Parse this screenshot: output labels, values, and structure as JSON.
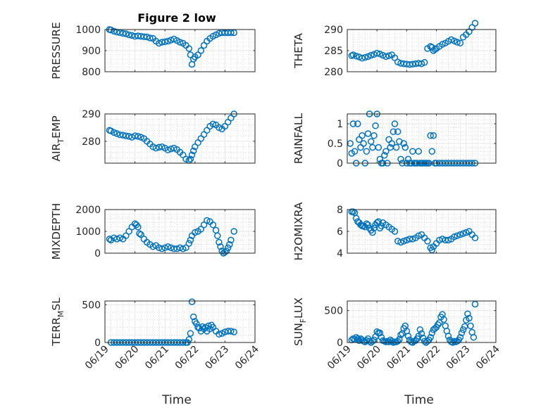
{
  "figure": {
    "title": "Figure 2 low",
    "xlabel": "Time"
  },
  "colors": {
    "marker": "#0072BD"
  },
  "chart_data": [
    {
      "type": "scatter",
      "ylabel": "PRESSURE",
      "ylim": [
        800,
        1000
      ],
      "yticks": [
        800,
        900,
        1000
      ],
      "x": [
        19.15,
        19.2,
        19.3,
        19.4,
        19.5,
        19.6,
        19.7,
        19.8,
        19.9,
        20.0,
        20.1,
        20.2,
        20.3,
        20.4,
        20.5,
        20.6,
        20.7,
        20.8,
        20.9,
        21.0,
        21.1,
        21.2,
        21.3,
        21.4,
        21.5,
        21.6,
        21.7,
        21.8,
        21.85,
        21.9,
        21.95,
        22.0,
        22.1,
        22.2,
        22.3,
        22.4,
        22.5,
        22.6,
        22.7,
        22.8,
        22.9,
        23.0,
        23.1,
        23.2,
        23.3
      ],
      "y": [
        1000,
        998,
        992,
        988,
        985,
        982,
        980,
        975,
        972,
        968,
        970,
        968,
        966,
        965,
        960,
        958,
        945,
        935,
        940,
        942,
        945,
        950,
        955,
        948,
        940,
        935,
        925,
        910,
        880,
        835,
        860,
        870,
        880,
        900,
        925,
        945,
        958,
        968,
        975,
        982,
        985,
        985,
        985,
        985,
        985
      ]
    },
    {
      "type": "scatter",
      "ylabel": "THETA",
      "ylim": [
        280,
        290
      ],
      "yticks": [
        280,
        285,
        290
      ],
      "x": [
        19.15,
        19.2,
        19.3,
        19.4,
        19.5,
        19.6,
        19.7,
        19.8,
        19.9,
        20.0,
        20.1,
        20.2,
        20.3,
        20.4,
        20.5,
        20.6,
        20.7,
        20.8,
        20.9,
        21.0,
        21.1,
        21.2,
        21.3,
        21.4,
        21.5,
        21.6,
        21.7,
        21.8,
        21.85,
        21.9,
        21.95,
        22.0,
        22.1,
        22.2,
        22.3,
        22.4,
        22.5,
        22.6,
        22.7,
        22.8,
        22.9,
        23.0,
        23.1,
        23.2,
        23.3
      ],
      "y": [
        283.8,
        284,
        283.7,
        283.5,
        283.2,
        283.4,
        283.6,
        283.9,
        284.1,
        284.4,
        284.2,
        283.9,
        283.6,
        283.8,
        284,
        283.3,
        282.3,
        282,
        281.9,
        281.8,
        281.7,
        281.8,
        281.9,
        282,
        281.9,
        282.2,
        285.5,
        286,
        285.8,
        285,
        285.3,
        285.5,
        286,
        286.5,
        286.8,
        287.2,
        287.6,
        287.3,
        287,
        286.8,
        288.2,
        288.8,
        289.5,
        290.5,
        291.5
      ]
    },
    {
      "type": "scatter",
      "ylabel": "AIR_TEMP",
      "ylim": [
        272,
        290
      ],
      "yticks": [
        280,
        290
      ],
      "x": [
        19.15,
        19.2,
        19.3,
        19.4,
        19.5,
        19.6,
        19.7,
        19.8,
        19.9,
        20.0,
        20.1,
        20.2,
        20.3,
        20.4,
        20.5,
        20.6,
        20.7,
        20.8,
        20.9,
        21.0,
        21.1,
        21.2,
        21.3,
        21.4,
        21.5,
        21.6,
        21.7,
        21.8,
        21.85,
        21.9,
        21.95,
        22.0,
        22.1,
        22.2,
        22.3,
        22.4,
        22.5,
        22.6,
        22.7,
        22.8,
        22.9,
        23.0,
        23.1,
        23.2,
        23.3
      ],
      "y": [
        284,
        283.8,
        283.2,
        282.8,
        282.4,
        282.2,
        282,
        281.8,
        281.5,
        282,
        281.8,
        281.5,
        281,
        280,
        279,
        278,
        277.5,
        277.8,
        278,
        277.5,
        276.8,
        277.2,
        277.5,
        277,
        276,
        275,
        273.5,
        273,
        273.5,
        275,
        276.5,
        278,
        279.5,
        281,
        282.5,
        284,
        285.5,
        286.3,
        286,
        285,
        284.5,
        285.5,
        287,
        288.5,
        290
      ]
    },
    {
      "type": "scatter",
      "ylabel": "RAINFALL",
      "ylim": [
        0,
        1.25
      ],
      "yticks": [
        0,
        0.5,
        1
      ],
      "yticklabels": [
        "0",
        "0.5",
        "1"
      ],
      "x": [
        19.1,
        19.15,
        19.2,
        19.25,
        19.3,
        19.35,
        19.4,
        19.45,
        19.5,
        19.55,
        19.6,
        19.65,
        19.7,
        19.75,
        19.8,
        19.85,
        19.9,
        19.95,
        20.0,
        20.05,
        20.1,
        20.15,
        20.2,
        20.25,
        20.3,
        20.35,
        20.4,
        20.45,
        20.5,
        20.55,
        20.6,
        20.65,
        20.7,
        20.75,
        20.8,
        20.85,
        20.9,
        20.95,
        21.0,
        21.05,
        21.1,
        21.15,
        21.2,
        21.25,
        21.3,
        21.35,
        21.4,
        21.45,
        21.5,
        21.55,
        21.6,
        21.65,
        21.7,
        21.75,
        21.8,
        21.85,
        21.9,
        21.95,
        22.0,
        22.1,
        22.2,
        22.3,
        22.4,
        22.5,
        22.6,
        22.7,
        22.8,
        22.9,
        23.0,
        23.1,
        23.2,
        23.3
      ],
      "y": [
        0.5,
        0.25,
        1,
        0.3,
        0,
        1,
        0.6,
        0.4,
        0.7,
        0.5,
        0,
        0.3,
        0.75,
        1.25,
        0.55,
        0.4,
        0.7,
        0.95,
        1.25,
        0.4,
        0.1,
        0,
        0,
        0.2,
        0.3,
        0,
        0.6,
        0.4,
        0.5,
        0.8,
        1.0,
        0.4,
        0.8,
        0.55,
        0.1,
        0,
        0.5,
        0.4,
        0,
        0.1,
        0,
        0,
        0.3,
        0,
        0,
        0,
        0.3,
        0,
        0,
        0,
        0,
        0,
        0,
        0,
        0.7,
        0.3,
        0.7,
        0,
        0,
        0,
        0,
        0,
        0,
        0,
        0,
        0,
        0,
        0,
        0,
        0,
        0,
        0
      ]
    },
    {
      "type": "scatter",
      "ylabel": "MIXDEPTH",
      "ylim": [
        0,
        2000
      ],
      "yticks": [
        0,
        1000,
        2000
      ],
      "x": [
        19.15,
        19.2,
        19.3,
        19.4,
        19.5,
        19.6,
        19.7,
        19.8,
        19.9,
        20.0,
        20.05,
        20.1,
        20.15,
        20.2,
        20.3,
        20.4,
        20.5,
        20.6,
        20.7,
        20.8,
        20.9,
        21.0,
        21.1,
        21.2,
        21.3,
        21.4,
        21.5,
        21.6,
        21.7,
        21.8,
        21.85,
        21.9,
        22.0,
        22.1,
        22.2,
        22.3,
        22.4,
        22.5,
        22.6,
        22.7,
        22.75,
        22.8,
        22.85,
        22.9,
        22.95,
        23.0,
        23.05,
        23.1,
        23.15,
        23.2,
        23.3
      ],
      "y": [
        650,
        600,
        700,
        650,
        700,
        650,
        800,
        1000,
        1200,
        1350,
        1300,
        1200,
        900,
        850,
        650,
        500,
        400,
        300,
        350,
        250,
        200,
        250,
        300,
        250,
        200,
        200,
        250,
        200,
        250,
        450,
        600,
        800,
        950,
        1000,
        1100,
        1300,
        1500,
        1450,
        1300,
        1050,
        800,
        500,
        300,
        100,
        0,
        50,
        100,
        250,
        400,
        600,
        1000
      ]
    },
    {
      "type": "scatter",
      "ylabel": "H2OMIXRA",
      "ylim": [
        4,
        8
      ],
      "yticks": [
        4,
        6,
        8
      ],
      "x": [
        19.15,
        19.2,
        19.25,
        19.3,
        19.35,
        19.4,
        19.45,
        19.5,
        19.55,
        19.6,
        19.65,
        19.7,
        19.75,
        19.8,
        19.85,
        19.9,
        19.95,
        20.0,
        20.05,
        20.1,
        20.15,
        20.2,
        20.3,
        20.4,
        20.5,
        20.6,
        20.7,
        20.8,
        20.9,
        21.0,
        21.1,
        21.2,
        21.3,
        21.4,
        21.5,
        21.6,
        21.7,
        21.8,
        21.85,
        21.9,
        22.0,
        22.1,
        22.2,
        22.3,
        22.4,
        22.5,
        22.6,
        22.7,
        22.8,
        22.9,
        23.0,
        23.1,
        23.2,
        23.3
      ],
      "y": [
        7.8,
        7.8,
        7.7,
        7.2,
        6.9,
        6.8,
        6.6,
        6.5,
        6.5,
        6.4,
        6.7,
        6.6,
        6.3,
        6.1,
        5.9,
        6.3,
        6.6,
        6.8,
        6.9,
        6.3,
        6.5,
        6.8,
        6.6,
        6.4,
        6.2,
        6.0,
        5.1,
        5.0,
        5.1,
        5.2,
        5.3,
        5.3,
        5.4,
        5.6,
        5.7,
        5.4,
        5.1,
        4.5,
        4.3,
        4.6,
        4.9,
        5.2,
        5.3,
        5.2,
        5.2,
        5.3,
        5.5,
        5.6,
        5.7,
        5.8,
        5.9,
        6.0,
        5.7,
        5.4
      ]
    },
    {
      "type": "scatter",
      "ylabel": "TERR_MSL",
      "ylim": [
        0,
        550
      ],
      "yticks": [
        0,
        500
      ],
      "x": [
        19.2,
        19.3,
        19.4,
        19.5,
        19.6,
        19.7,
        19.8,
        19.9,
        20.0,
        20.1,
        20.2,
        20.3,
        20.4,
        20.5,
        20.6,
        20.7,
        20.8,
        20.9,
        21.0,
        21.1,
        21.2,
        21.3,
        21.4,
        21.5,
        21.6,
        21.7,
        21.75,
        21.8,
        21.85,
        21.9,
        21.95,
        22.0,
        22.05,
        22.1,
        22.15,
        22.2,
        22.25,
        22.3,
        22.35,
        22.4,
        22.45,
        22.5,
        22.55,
        22.6,
        22.7,
        22.8,
        22.9,
        23.0,
        23.1,
        23.2,
        23.3
      ],
      "y": [
        0,
        0,
        0,
        0,
        0,
        0,
        0,
        0,
        0,
        0,
        0,
        0,
        0,
        0,
        0,
        0,
        0,
        0,
        0,
        0,
        0,
        0,
        0,
        0,
        0,
        0,
        0,
        40,
        120,
        540,
        340,
        280,
        250,
        200,
        190,
        150,
        210,
        180,
        200,
        150,
        220,
        180,
        230,
        200,
        150,
        110,
        120,
        140,
        150,
        150,
        140
      ]
    },
    {
      "type": "scatter",
      "ylabel": "SUN_FLUX",
      "ylim": [
        0,
        650
      ],
      "yticks": [
        0,
        500
      ],
      "x": [
        19.15,
        19.2,
        19.25,
        19.3,
        19.35,
        19.4,
        19.45,
        19.5,
        19.55,
        19.6,
        19.65,
        19.7,
        19.75,
        19.8,
        19.85,
        19.9,
        19.95,
        20.0,
        20.05,
        20.1,
        20.15,
        20.2,
        20.25,
        20.3,
        20.35,
        20.4,
        20.45,
        20.5,
        20.55,
        20.6,
        20.65,
        20.7,
        20.75,
        20.8,
        20.85,
        20.9,
        20.95,
        21.0,
        21.05,
        21.1,
        21.15,
        21.2,
        21.25,
        21.3,
        21.35,
        21.4,
        21.45,
        21.5,
        21.55,
        21.6,
        21.65,
        21.7,
        21.75,
        21.8,
        21.85,
        21.9,
        21.95,
        22.0,
        22.05,
        22.1,
        22.15,
        22.2,
        22.25,
        22.3,
        22.35,
        22.4,
        22.45,
        22.5,
        22.55,
        22.6,
        22.65,
        22.7,
        22.75,
        22.8,
        22.85,
        22.9,
        22.95,
        23.0,
        23.05,
        23.1,
        23.15,
        23.2,
        23.25,
        23.3
      ],
      "y": [
        40,
        60,
        50,
        80,
        60,
        30,
        60,
        40,
        20,
        10,
        30,
        60,
        20,
        0,
        20,
        40,
        90,
        170,
        150,
        150,
        80,
        30,
        20,
        10,
        20,
        10,
        40,
        20,
        0,
        10,
        10,
        20,
        50,
        120,
        140,
        220,
        260,
        180,
        100,
        40,
        10,
        0,
        20,
        30,
        60,
        100,
        200,
        140,
        70,
        20,
        0,
        20,
        40,
        80,
        150,
        200,
        220,
        240,
        280,
        310,
        400,
        440,
        360,
        260,
        180,
        100,
        40,
        10,
        0,
        20,
        10,
        20,
        40,
        80,
        150,
        200,
        250,
        350,
        450,
        380,
        260,
        160,
        80,
        600
      ]
    }
  ]
}
